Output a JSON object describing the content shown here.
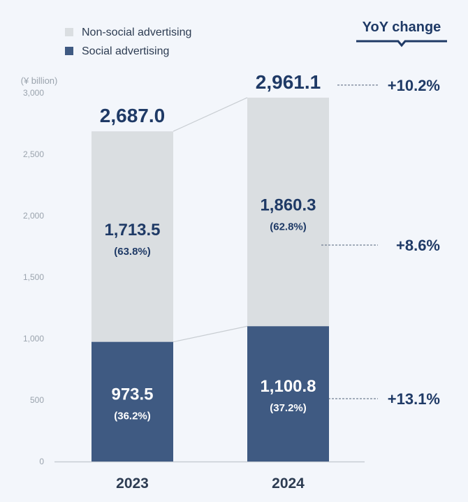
{
  "chart_data": {
    "type": "bar",
    "stacked": true,
    "unit_label": "(¥ billion)",
    "categories": [
      "2023",
      "2024"
    ],
    "series": [
      {
        "name": "Social advertising",
        "values": [
          973.5,
          1100.8
        ],
        "value_labels": [
          "973.5",
          "1,100.8"
        ],
        "share_labels": [
          "(36.2%)",
          "(37.2%)"
        ],
        "color": "#3f5a82",
        "label_color": "#ffffff",
        "yoy": "+13.1%"
      },
      {
        "name": "Non-social advertising",
        "values": [
          1713.5,
          1860.3
        ],
        "value_labels": [
          "1,713.5",
          "1,860.3"
        ],
        "share_labels": [
          "(63.8%)",
          "(62.8%)"
        ],
        "color": "#dadee1",
        "label_color": "#1f3a66",
        "yoy": "+8.6%"
      }
    ],
    "totals": [
      2687.0,
      2961.1
    ],
    "total_labels": [
      "2,687.0",
      "2,961.1"
    ],
    "total_yoy": "+10.2%",
    "yoy_title": "YoY change",
    "ylim": [
      0,
      3000
    ],
    "yticks": [
      0,
      500,
      1000,
      1500,
      2000,
      2500,
      3000
    ],
    "ytick_labels": [
      "0",
      "500",
      "1,000",
      "1,500",
      "2,000",
      "2,500",
      "3,000"
    ],
    "grid": false,
    "legend_position": "top-left",
    "colors": {
      "background": "#f3f6fb",
      "text_dark": "#1f3a66",
      "axis_text": "#9aa3ad",
      "connector": "#c8cdd2"
    }
  }
}
